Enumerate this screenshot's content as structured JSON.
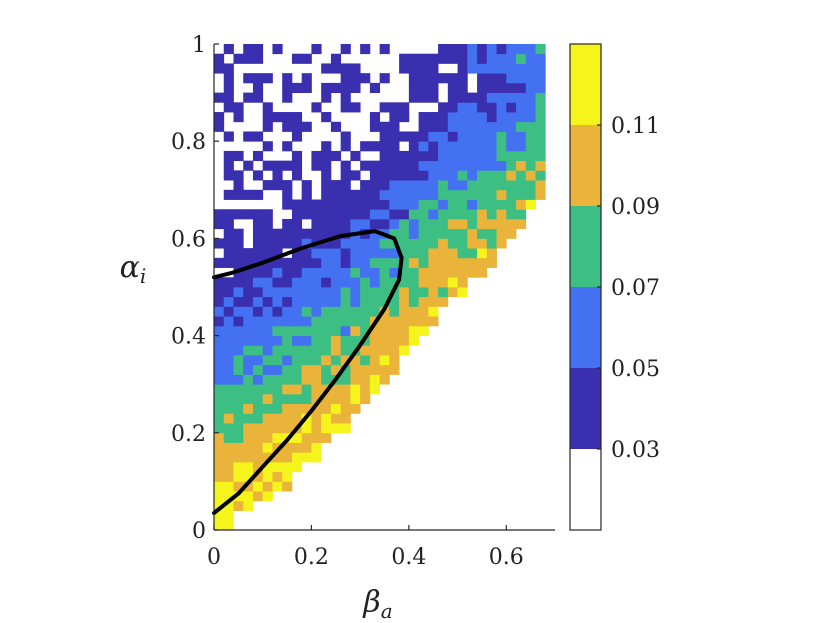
{
  "chart_data": {
    "type": "heatmap",
    "title": "",
    "xlabel": "β",
    "xlabel_sub": "a",
    "ylabel": "α",
    "ylabel_sub": "i",
    "xlim": [
      0,
      0.7
    ],
    "ylim": [
      0,
      1
    ],
    "xticks": [
      0,
      0.2,
      0.4,
      0.6
    ],
    "xtick_labels": [
      "0",
      "0.2",
      "0.4",
      "0.6"
    ],
    "yticks": [
      0,
      0.2,
      0.4,
      0.6,
      0.8,
      1
    ],
    "ytick_labels": [
      "0",
      "0.2",
      "0.4",
      "0.6",
      "0.8",
      "1"
    ],
    "grid": false,
    "colorbar": {
      "range": [
        0.01,
        0.13
      ],
      "bands": [
        {
          "from": 0.01,
          "to": 0.03,
          "color": "#ffffff"
        },
        {
          "from": 0.03,
          "to": 0.05,
          "color": "#3a2fae"
        },
        {
          "from": 0.05,
          "to": 0.07,
          "color": "#4470f2"
        },
        {
          "from": 0.07,
          "to": 0.09,
          "color": "#3dbf84"
        },
        {
          "from": 0.09,
          "to": 0.11,
          "color": "#eab43a"
        },
        {
          "from": 0.11,
          "to": 0.13,
          "color": "#f5f51c"
        }
      ],
      "ticks": [
        0.03,
        0.05,
        0.07,
        0.09,
        0.11
      ],
      "tick_labels": [
        "0.03",
        "0.05",
        "0.07",
        "0.09",
        "0.11"
      ]
    },
    "heatmap": {
      "cell_size": 0.02,
      "x_range": [
        0,
        0.7
      ],
      "y_range": [
        0,
        1
      ],
      "region_lower_edge": [
        [
          0,
          0
        ],
        [
          0.1,
          0.05
        ],
        [
          0.2,
          0.14
        ],
        [
          0.3,
          0.24
        ],
        [
          0.4,
          0.36
        ],
        [
          0.5,
          0.48
        ],
        [
          0.6,
          0.58
        ],
        [
          0.68,
          0.7
        ]
      ],
      "value_bands": [
        {
          "level": "0.11",
          "description_zone": "near lower edge, low alpha"
        },
        {
          "level": "0.09",
          "description_zone": "middle"
        },
        {
          "level": "0.07",
          "description_zone": "middle"
        },
        {
          "level": "0.05",
          "description_zone": "upper"
        },
        {
          "level": "0.03",
          "description_zone": "top"
        }
      ]
    },
    "curve": {
      "color": "#000000",
      "points": [
        [
          0.0,
          0.035
        ],
        [
          0.05,
          0.075
        ],
        [
          0.1,
          0.13
        ],
        [
          0.15,
          0.185
        ],
        [
          0.2,
          0.245
        ],
        [
          0.25,
          0.31
        ],
        [
          0.3,
          0.38
        ],
        [
          0.35,
          0.455
        ],
        [
          0.38,
          0.515
        ],
        [
          0.385,
          0.56
        ],
        [
          0.37,
          0.6
        ],
        [
          0.33,
          0.615
        ],
        [
          0.26,
          0.605
        ],
        [
          0.18,
          0.58
        ],
        [
          0.1,
          0.55
        ],
        [
          0.04,
          0.53
        ],
        [
          0.0,
          0.52
        ]
      ]
    }
  }
}
